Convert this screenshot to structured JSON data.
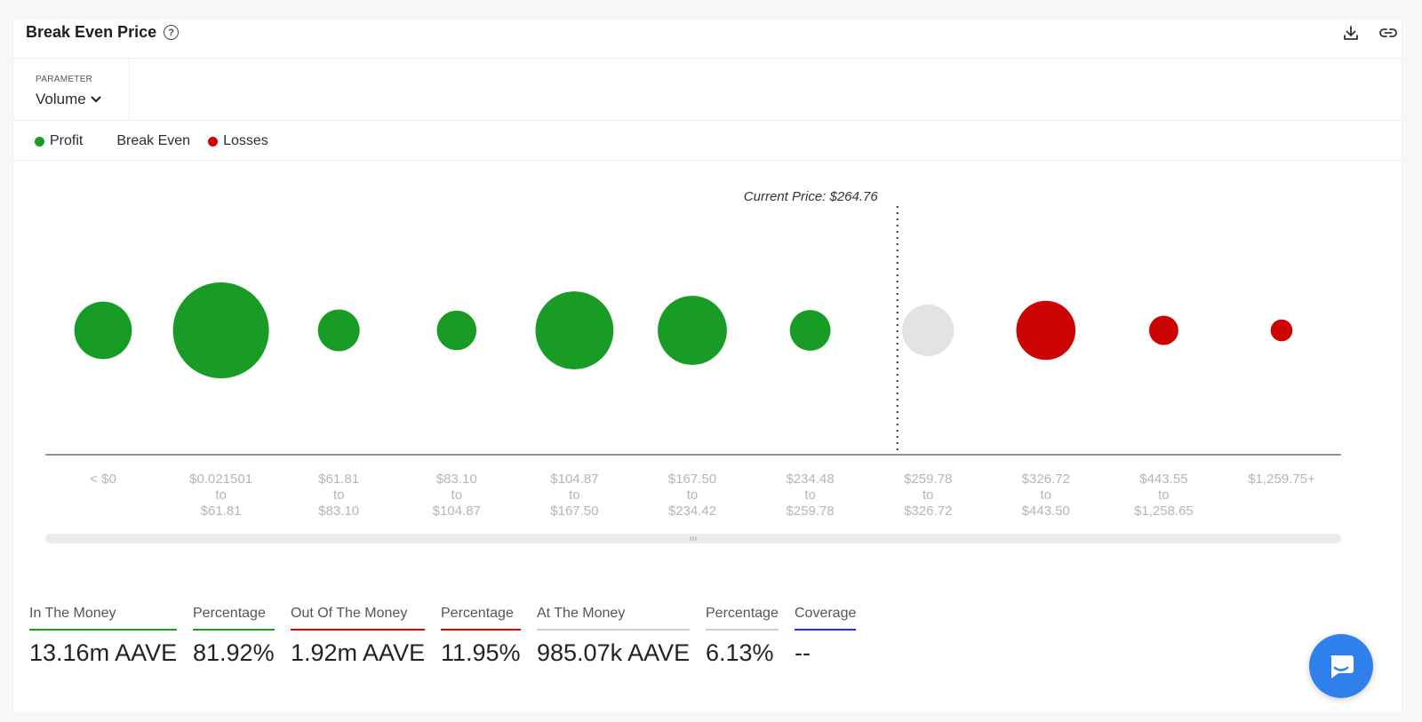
{
  "header": {
    "title": "Break Even Price",
    "help_icon": "question-circle-icon",
    "download_icon": "download-icon",
    "link_icon": "link-icon"
  },
  "parameter": {
    "label": "PARAMETER",
    "value": "Volume"
  },
  "legend": [
    {
      "label": "Profit",
      "color": "#189c26"
    },
    {
      "label": "Break Even",
      "color": null
    },
    {
      "label": "Losses",
      "color": "#cc0404"
    }
  ],
  "chart_data": {
    "type": "scatter",
    "annotation": "Current Price: $264.76",
    "current_price": 264.76,
    "current_price_bucket_index": 7,
    "categories": [
      [
        "< $0"
      ],
      [
        "$0.021501",
        "to",
        "$61.81"
      ],
      [
        "$61.81",
        "to",
        "$83.10"
      ],
      [
        "$83.10",
        "to",
        "$104.87"
      ],
      [
        "$104.87",
        "to",
        "$167.50"
      ],
      [
        "$167.50",
        "to",
        "$234.42"
      ],
      [
        "$234.48",
        "to",
        "$259.78"
      ],
      [
        "$259.78",
        "to",
        "$326.72"
      ],
      [
        "$326.72",
        "to",
        "$443.50"
      ],
      [
        "$443.55",
        "to",
        "$1,258.65"
      ],
      [
        "$1,259.75+"
      ]
    ],
    "status": [
      "profit",
      "profit",
      "profit",
      "profit",
      "profit",
      "profit",
      "profit",
      "break_even",
      "losses",
      "losses",
      "losses"
    ],
    "relative_volume": [
      0.36,
      1.0,
      0.19,
      0.17,
      0.66,
      0.52,
      0.18,
      0.29,
      0.38,
      0.093,
      0.052
    ],
    "colors": {
      "profit": "#189c26",
      "break_even": "#e3e3e3",
      "losses": "#cc0404"
    }
  },
  "stats": [
    {
      "label": "In The Money",
      "value": "13.16m AAVE",
      "color": "#189c26"
    },
    {
      "label": "Percentage",
      "value": "81.92%",
      "color": "#189c26"
    },
    {
      "label": "Out Of The Money",
      "value": "1.92m AAVE",
      "color": "#cc0404"
    },
    {
      "label": "Percentage",
      "value": "11.95%",
      "color": "#cc0404"
    },
    {
      "label": "At The Money",
      "value": "985.07k AAVE",
      "color": "#cfcfcf"
    },
    {
      "label": "Percentage",
      "value": "6.13%",
      "color": "#cfcfcf"
    },
    {
      "label": "Coverage",
      "value": "--",
      "color": "#2130d4"
    }
  ],
  "chat_icon": "chat-bubble-icon"
}
